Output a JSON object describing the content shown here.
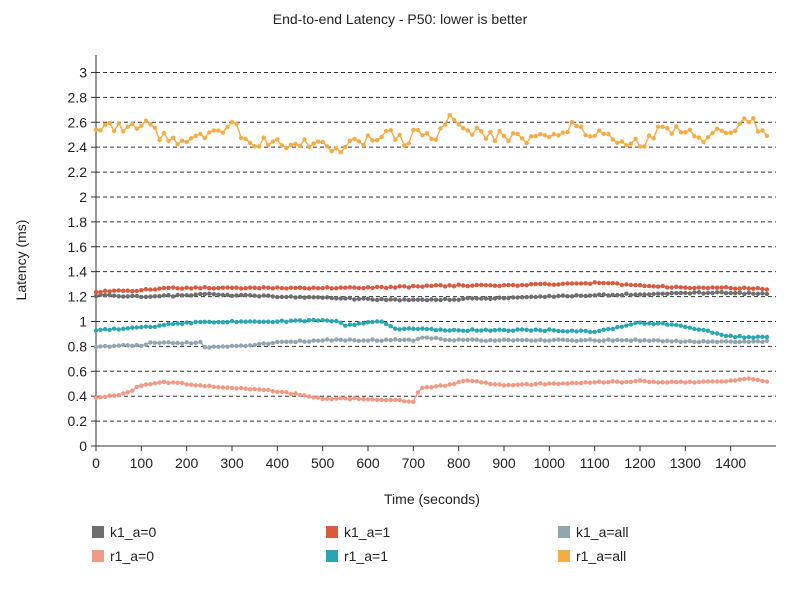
{
  "chart_data": {
    "type": "line",
    "title": "End-to-end Latency - P50: lower is better",
    "xlabel": "Time (seconds)",
    "ylabel": "Latency (ms)",
    "xlim": [
      0,
      1500
    ],
    "ylim": [
      0,
      3.1
    ],
    "xticks": [
      "0",
      "100",
      "200",
      "300",
      "400",
      "500",
      "600",
      "700",
      "800",
      "900",
      "1000",
      "1100",
      "1200",
      "1300",
      "1400"
    ],
    "yticks": [
      "0",
      "0.2",
      "0.4",
      "0.6",
      "0.8",
      "1",
      "1.2",
      "1.4",
      "1.6",
      "1.8",
      "2",
      "2.2",
      "2.4",
      "2.6",
      "2.8",
      "3"
    ],
    "grid": "horizontal-dashed",
    "legend_placement": "bottom",
    "series": [
      {
        "name": "k1_a=0",
        "color": "#6e6e6e",
        "keypoints": [
          [
            0,
            1.21
          ],
          [
            100,
            1.2
          ],
          [
            200,
            1.21
          ],
          [
            250,
            1.22
          ],
          [
            300,
            1.21
          ],
          [
            400,
            1.2
          ],
          [
            500,
            1.19
          ],
          [
            600,
            1.18
          ],
          [
            700,
            1.17
          ],
          [
            800,
            1.18
          ],
          [
            900,
            1.19
          ],
          [
            1000,
            1.2
          ],
          [
            1100,
            1.21
          ],
          [
            1200,
            1.22
          ],
          [
            1300,
            1.23
          ],
          [
            1400,
            1.23
          ],
          [
            1480,
            1.22
          ]
        ]
      },
      {
        "name": "k1_a=1",
        "color": "#d95a3e",
        "keypoints": [
          [
            0,
            1.24
          ],
          [
            100,
            1.25
          ],
          [
            150,
            1.27
          ],
          [
            200,
            1.27
          ],
          [
            300,
            1.27
          ],
          [
            400,
            1.27
          ],
          [
            500,
            1.27
          ],
          [
            600,
            1.27
          ],
          [
            700,
            1.28
          ],
          [
            800,
            1.29
          ],
          [
            900,
            1.29
          ],
          [
            1000,
            1.3
          ],
          [
            1100,
            1.31
          ],
          [
            1200,
            1.29
          ],
          [
            1300,
            1.27
          ],
          [
            1400,
            1.27
          ],
          [
            1480,
            1.26
          ]
        ]
      },
      {
        "name": "k1_a=all",
        "color": "#93a6b0",
        "keypoints": [
          [
            0,
            0.8
          ],
          [
            100,
            0.81
          ],
          [
            120,
            0.83
          ],
          [
            200,
            0.83
          ],
          [
            230,
            0.83
          ],
          [
            240,
            0.79
          ],
          [
            300,
            0.8
          ],
          [
            400,
            0.83
          ],
          [
            500,
            0.85
          ],
          [
            600,
            0.85
          ],
          [
            700,
            0.85
          ],
          [
            720,
            0.87
          ],
          [
            800,
            0.85
          ],
          [
            900,
            0.85
          ],
          [
            1000,
            0.85
          ],
          [
            1100,
            0.85
          ],
          [
            1200,
            0.85
          ],
          [
            1300,
            0.84
          ],
          [
            1400,
            0.84
          ],
          [
            1480,
            0.84
          ]
        ]
      },
      {
        "name": "r1_a=0",
        "color": "#f09a85",
        "keypoints": [
          [
            0,
            0.39
          ],
          [
            50,
            0.41
          ],
          [
            80,
            0.45
          ],
          [
            100,
            0.49
          ],
          [
            150,
            0.51
          ],
          [
            200,
            0.5
          ],
          [
            250,
            0.48
          ],
          [
            300,
            0.47
          ],
          [
            400,
            0.44
          ],
          [
            450,
            0.41
          ],
          [
            500,
            0.38
          ],
          [
            550,
            0.38
          ],
          [
            600,
            0.38
          ],
          [
            650,
            0.37
          ],
          [
            700,
            0.36
          ],
          [
            710,
            0.43
          ],
          [
            720,
            0.47
          ],
          [
            780,
            0.49
          ],
          [
            820,
            0.53
          ],
          [
            850,
            0.51
          ],
          [
            900,
            0.49
          ],
          [
            1000,
            0.5
          ],
          [
            1100,
            0.51
          ],
          [
            1200,
            0.52
          ],
          [
            1300,
            0.51
          ],
          [
            1400,
            0.52
          ],
          [
            1440,
            0.54
          ],
          [
            1480,
            0.52
          ]
        ]
      },
      {
        "name": "r1_a=1",
        "color": "#2aa6b0",
        "keypoints": [
          [
            0,
            0.93
          ],
          [
            100,
            0.95
          ],
          [
            200,
            0.99
          ],
          [
            300,
            1.0
          ],
          [
            400,
            1.0
          ],
          [
            500,
            1.01
          ],
          [
            530,
            1.0
          ],
          [
            550,
            0.97
          ],
          [
            600,
            0.99
          ],
          [
            630,
            1.0
          ],
          [
            660,
            0.94
          ],
          [
            700,
            0.94
          ],
          [
            800,
            0.93
          ],
          [
            900,
            0.93
          ],
          [
            1000,
            0.93
          ],
          [
            1100,
            0.92
          ],
          [
            1150,
            0.95
          ],
          [
            1200,
            0.99
          ],
          [
            1250,
            0.98
          ],
          [
            1300,
            0.96
          ],
          [
            1350,
            0.92
          ],
          [
            1400,
            0.88
          ],
          [
            1480,
            0.87
          ]
        ]
      },
      {
        "name": "r1_a=all",
        "color": "#f5ac45",
        "keypoints": [
          [
            0,
            2.58
          ],
          [
            10,
            2.5
          ],
          [
            30,
            2.58
          ],
          [
            60,
            2.55
          ],
          [
            100,
            2.56
          ],
          [
            120,
            2.62
          ],
          [
            140,
            2.48
          ],
          [
            200,
            2.41
          ],
          [
            250,
            2.5
          ],
          [
            300,
            2.57
          ],
          [
            350,
            2.44
          ],
          [
            400,
            2.43
          ],
          [
            500,
            2.41
          ],
          [
            520,
            2.36
          ],
          [
            600,
            2.46
          ],
          [
            650,
            2.5
          ],
          [
            680,
            2.44
          ],
          [
            700,
            2.5
          ],
          [
            750,
            2.48
          ],
          [
            780,
            2.62
          ],
          [
            800,
            2.55
          ],
          [
            850,
            2.5
          ],
          [
            900,
            2.48
          ],
          [
            1000,
            2.47
          ],
          [
            1050,
            2.58
          ],
          [
            1100,
            2.5
          ],
          [
            1150,
            2.46
          ],
          [
            1200,
            2.42
          ],
          [
            1250,
            2.56
          ],
          [
            1300,
            2.5
          ],
          [
            1350,
            2.48
          ],
          [
            1400,
            2.54
          ],
          [
            1440,
            2.64
          ],
          [
            1480,
            2.48
          ]
        ]
      }
    ]
  }
}
